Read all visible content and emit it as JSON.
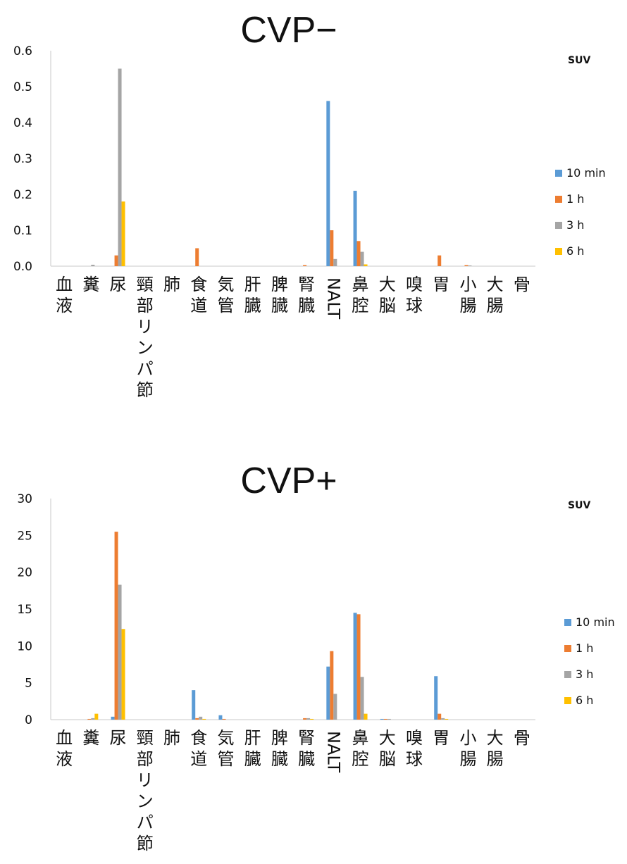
{
  "colors": {
    "10 min": "#5b9bd5",
    "1 h": "#ed7d31",
    "3 h": "#a5a5a5",
    "6 h": "#ffc000"
  },
  "chart_data": [
    {
      "type": "bar",
      "title": "CVP−",
      "unit_label": "SUV",
      "xlabel": "",
      "ylabel": "",
      "ylim": [
        0,
        0.6
      ],
      "yticks": [
        "0.0",
        "0.1",
        "0.2",
        "0.3",
        "0.4",
        "0.5",
        "0.6"
      ],
      "grid": false,
      "legend_position": "right",
      "categories": [
        "血液",
        "糞",
        "尿",
        "頸部リンパ節",
        "肺",
        "食道",
        "気管",
        "肝臓",
        "脾臓",
        "腎臓",
        "NALT",
        "鼻腔",
        "大脳",
        "嗅球",
        "胃",
        "小腸",
        "大腸",
        "骨"
      ],
      "series": [
        {
          "name": "10 min",
          "values": [
            0,
            0,
            0,
            0,
            0,
            0,
            0,
            0,
            0,
            0,
            0.46,
            0.21,
            0,
            0,
            0,
            0,
            0,
            0
          ]
        },
        {
          "name": "1 h",
          "values": [
            0,
            0,
            0.03,
            0,
            0,
            0.05,
            0,
            0,
            0,
            0.003,
            0.1,
            0.07,
            0,
            0,
            0.03,
            0.003,
            0,
            0
          ]
        },
        {
          "name": "3 h",
          "values": [
            0,
            0.004,
            0.55,
            0,
            0,
            0,
            0,
            0,
            0,
            0,
            0.02,
            0.04,
            0,
            0,
            0,
            0.002,
            0,
            0
          ]
        },
        {
          "name": "6 h",
          "values": [
            0,
            0,
            0.18,
            0,
            0,
            0,
            0,
            0,
            0,
            0,
            0,
            0.005,
            0,
            0,
            0,
            0,
            0,
            0
          ]
        }
      ]
    },
    {
      "type": "bar",
      "title": "CVP+",
      "unit_label": "SUV",
      "xlabel": "",
      "ylabel": "",
      "ylim": [
        0,
        30
      ],
      "yticks": [
        "0",
        "5",
        "10",
        "15",
        "20",
        "25",
        "30"
      ],
      "grid": false,
      "legend_position": "right",
      "categories": [
        "血液",
        "糞",
        "尿",
        "頸部リンパ節",
        "肺",
        "食道",
        "気管",
        "肝臓",
        "脾臓",
        "腎臓",
        "NALT",
        "鼻腔",
        "大脳",
        "嗅球",
        "胃",
        "小腸",
        "大腸",
        "骨"
      ],
      "series": [
        {
          "name": "10 min",
          "values": [
            0,
            0,
            0.4,
            0,
            0,
            4.0,
            0.6,
            0,
            0,
            0,
            7.2,
            14.5,
            0.1,
            0,
            5.9,
            0,
            0,
            0
          ]
        },
        {
          "name": "1 h",
          "values": [
            0,
            0.1,
            25.5,
            0,
            0,
            0.2,
            0.1,
            0,
            0,
            0.2,
            9.3,
            14.3,
            0.1,
            0,
            0.8,
            0,
            0,
            0
          ]
        },
        {
          "name": "3 h",
          "values": [
            0,
            0.2,
            18.3,
            0,
            0,
            0.4,
            0,
            0,
            0,
            0.2,
            3.5,
            5.8,
            0.1,
            0,
            0.2,
            0,
            0,
            0
          ]
        },
        {
          "name": "6 h",
          "values": [
            0,
            0.8,
            12.3,
            0,
            0,
            0.1,
            0,
            0,
            0,
            0.1,
            0,
            0.8,
            0,
            0,
            0.1,
            0,
            0,
            0
          ]
        }
      ]
    }
  ]
}
